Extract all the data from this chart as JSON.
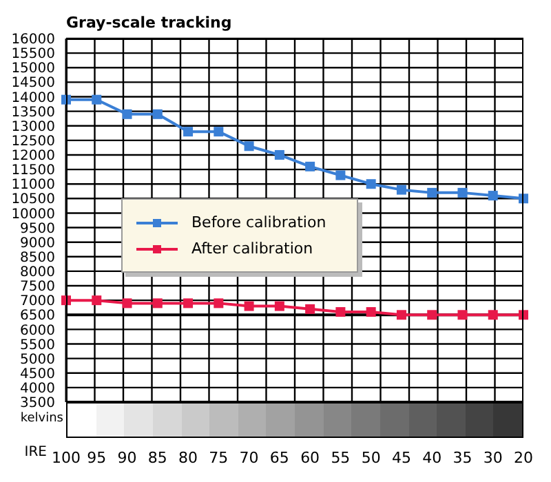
{
  "chart_data": {
    "type": "line",
    "title": "Gray-scale tracking",
    "xlabel": "IRE",
    "ylabel": "kelvins",
    "categories": [
      "100",
      "95",
      "90",
      "85",
      "80",
      "75",
      "70",
      "65",
      "60",
      "55",
      "50",
      "45",
      "40",
      "35",
      "30",
      "20"
    ],
    "series": [
      {
        "name": "Before calibration",
        "color": "#3a7fd5",
        "values": [
          13900,
          13900,
          13400,
          13400,
          12800,
          12800,
          12300,
          12000,
          11600,
          11300,
          11000,
          10800,
          10700,
          10700,
          10600,
          10500
        ]
      },
      {
        "name": "After calibration",
        "color": "#e8194a",
        "values": [
          7000,
          7000,
          6900,
          6900,
          6900,
          6900,
          6800,
          6800,
          6700,
          6600,
          6600,
          6500,
          6500,
          6500,
          6500,
          6500
        ]
      }
    ],
    "ylim": [
      3500,
      16000
    ],
    "yticks": [
      3500,
      4000,
      4500,
      5000,
      5500,
      6000,
      6500,
      7000,
      7500,
      8000,
      8500,
      9000,
      9500,
      10000,
      10500,
      11000,
      11500,
      12000,
      12500,
      13000,
      13500,
      14000,
      14500,
      15000,
      15500,
      16000
    ],
    "ref_lines": [
      {
        "axis": "y",
        "value": 6500,
        "color": "#000000"
      }
    ],
    "grid": true,
    "legend": "center",
    "marker": "square",
    "line_style": "solid"
  }
}
